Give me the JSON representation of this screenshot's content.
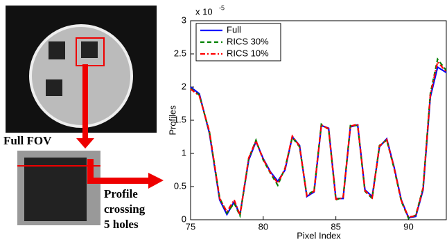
{
  "chart_data": {
    "type": "line",
    "xlabel": "Pixel Index",
    "ylabel": "Profiles",
    "y_multiplier": {
      "base": "x 10",
      "exponent": "-5"
    },
    "annotations": {
      "full_fov": "Full FOV",
      "profile": [
        "Profile",
        "crossing",
        "5 holes"
      ]
    },
    "x": [
      75,
      75.6,
      76.3,
      77,
      77.5,
      78,
      78.4,
      79,
      79.5,
      80,
      80.5,
      81,
      81.5,
      82,
      82.5,
      83,
      83.5,
      84,
      84.5,
      85,
      85.5,
      86,
      86.5,
      87,
      87.5,
      88,
      88.5,
      89,
      89.5,
      90,
      90.5,
      91,
      91.5,
      92,
      92.6
    ],
    "series": [
      {
        "name": "Full",
        "color": "#0000ff",
        "dash": "none",
        "values": [
          2.0,
          1.9,
          1.3,
          0.3,
          0.08,
          0.27,
          0.08,
          0.9,
          1.18,
          0.92,
          0.72,
          0.58,
          0.75,
          1.25,
          1.12,
          0.35,
          0.42,
          1.42,
          1.38,
          0.32,
          0.32,
          1.4,
          1.43,
          0.45,
          0.35,
          1.1,
          1.22,
          0.8,
          0.3,
          0.03,
          0.05,
          0.45,
          1.85,
          2.3,
          2.22
        ]
      },
      {
        "name": "RICS 30%",
        "color": "#008000",
        "dash": "6,4",
        "values": [
          1.98,
          1.88,
          1.32,
          0.33,
          0.1,
          0.25,
          0.06,
          0.92,
          1.2,
          0.9,
          0.7,
          0.52,
          0.78,
          1.24,
          1.1,
          0.37,
          0.44,
          1.44,
          1.36,
          0.3,
          0.34,
          1.42,
          1.42,
          0.43,
          0.32,
          1.12,
          1.2,
          0.78,
          0.28,
          0.02,
          0.07,
          0.48,
          1.9,
          2.42,
          2.25
        ]
      },
      {
        "name": "RICS 10%",
        "color": "#ff0000",
        "dash": "7,3,2,3",
        "values": [
          1.97,
          1.87,
          1.33,
          0.32,
          0.12,
          0.3,
          0.07,
          0.93,
          1.19,
          0.91,
          0.71,
          0.55,
          0.77,
          1.26,
          1.11,
          0.36,
          0.43,
          1.43,
          1.37,
          0.31,
          0.33,
          1.41,
          1.44,
          0.44,
          0.33,
          1.11,
          1.21,
          0.79,
          0.29,
          0.04,
          0.06,
          0.47,
          1.88,
          2.38,
          2.23
        ]
      }
    ],
    "xlim": [
      75,
      92.6
    ],
    "xticks": [
      75,
      80,
      85,
      90
    ],
    "ylim": [
      0,
      3
    ],
    "yticks": [
      0,
      0.5,
      1,
      1.5,
      2,
      2.5,
      3
    ],
    "legend": "top-left",
    "grid": false
  }
}
